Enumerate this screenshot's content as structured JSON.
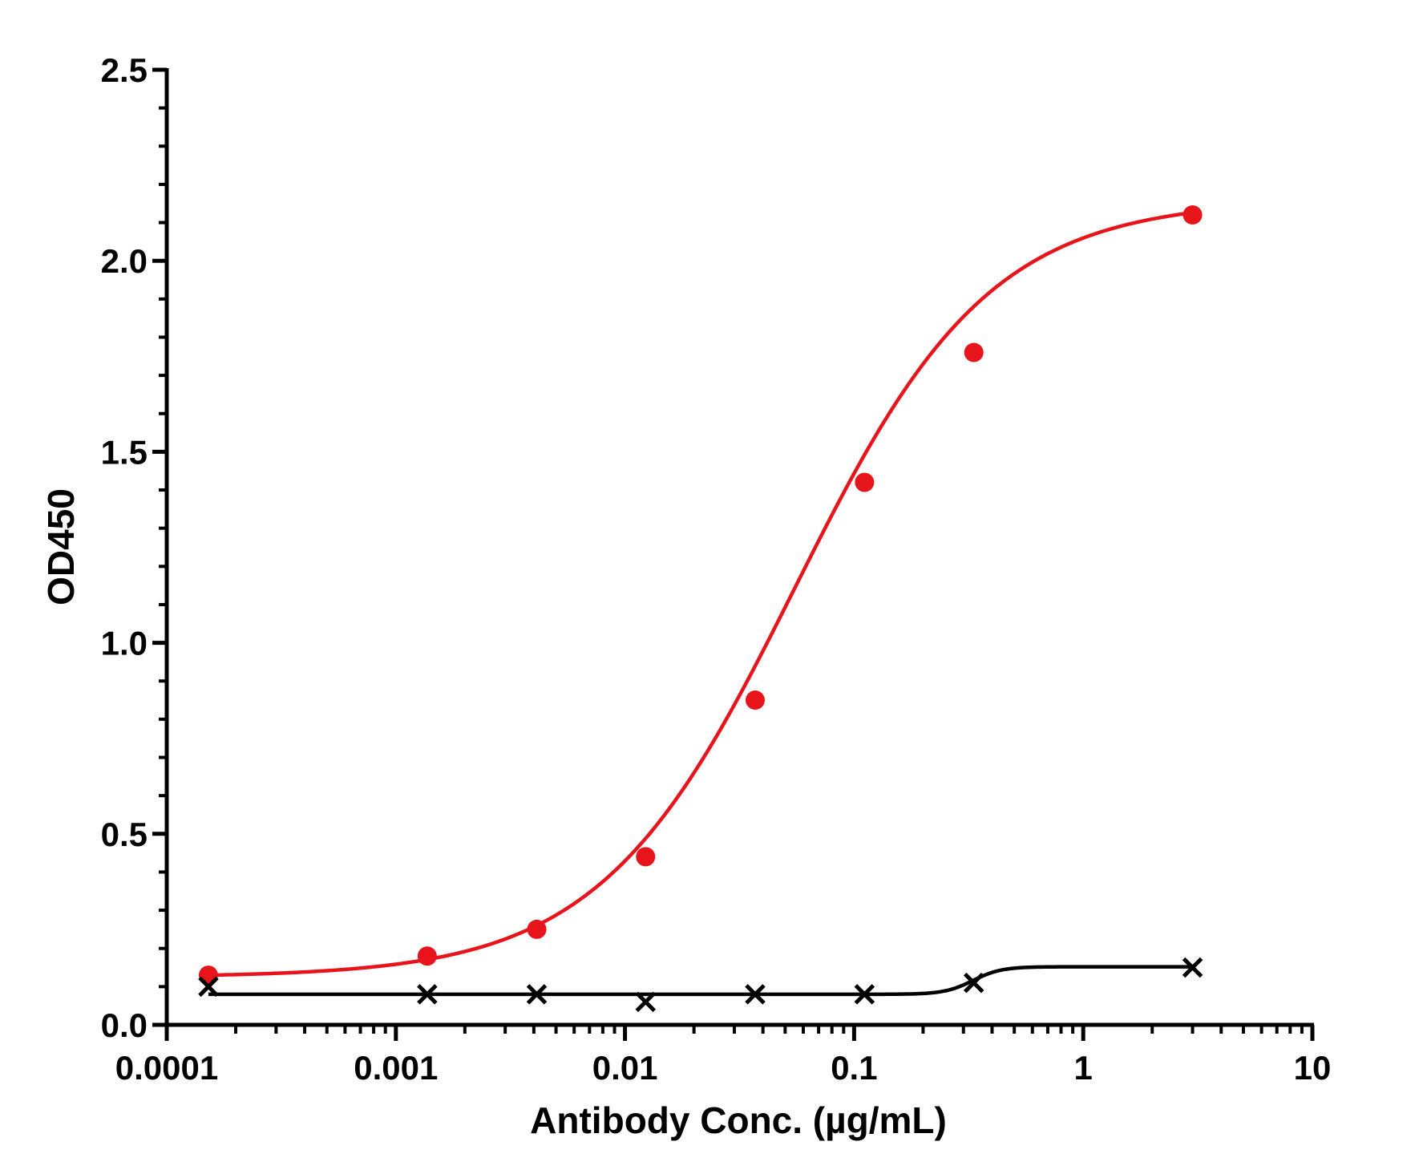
{
  "chart_data": {
    "type": "scatter",
    "xlabel": "Antibody Conc. (µg/mL)",
    "ylabel": "OD450",
    "xscale": "log",
    "xlim": [
      0.0001,
      10
    ],
    "ylim": [
      0,
      2.5
    ],
    "x_ticks": [
      0.0001,
      0.001,
      0.01,
      0.1,
      1,
      10
    ],
    "x_tick_labels": [
      "0.0001",
      "0.001",
      "0.01",
      "0.1",
      "1",
      "10"
    ],
    "y_ticks": [
      0,
      0.5,
      1.0,
      1.5,
      2.0,
      2.5
    ],
    "y_tick_labels": [
      "0.0",
      "0.5",
      "1.0",
      "1.5",
      "2.0",
      "2.5"
    ],
    "grid": false,
    "legend": "none",
    "series": [
      {
        "marker": "circle",
        "color": "#e8141c",
        "curve": "sigmoidal fit",
        "x": [
          0.000152,
          0.00137,
          0.00412,
          0.0123,
          0.037,
          0.111,
          0.333,
          3.0
        ],
        "y": [
          0.13,
          0.18,
          0.25,
          0.44,
          0.85,
          1.42,
          1.76,
          2.12
        ]
      },
      {
        "marker": "cross",
        "color": "#000000",
        "curve": "sigmoidal fit",
        "x": [
          0.000152,
          0.00137,
          0.00412,
          0.0123,
          0.037,
          0.111,
          0.333,
          3.0
        ],
        "y": [
          0.1,
          0.08,
          0.08,
          0.06,
          0.08,
          0.08,
          0.11,
          0.15
        ]
      }
    ]
  }
}
